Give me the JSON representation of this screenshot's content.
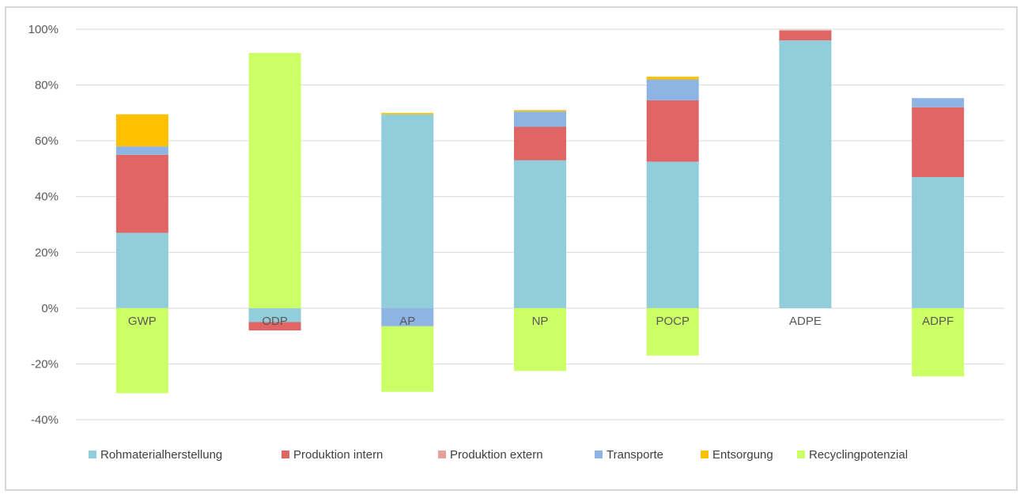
{
  "chart_data": {
    "type": "bar",
    "stacked": true,
    "categories": [
      "GWP",
      "ODP",
      "AP",
      "NP",
      "POCP",
      "ADPE",
      "ADPF"
    ],
    "y_unit": "%",
    "ylim": [
      -40,
      100
    ],
    "yticks": [
      -40,
      -20,
      0,
      20,
      40,
      60,
      80,
      100
    ],
    "y_tick_labels": [
      "-40%",
      "-20%",
      "0%",
      "20%",
      "40%",
      "60%",
      "80%",
      "100%"
    ],
    "grid": true,
    "legend_position": "bottom",
    "series": [
      {
        "name": "Rohmaterialherstellung",
        "color": "#92cddc",
        "values": [
          27,
          -5,
          69.5,
          53,
          52.5,
          96,
          47
        ]
      },
      {
        "name": "Produktion intern",
        "color": "#e06666",
        "values": [
          28,
          -3,
          0,
          12,
          22,
          3.5,
          25
        ]
      },
      {
        "name": "Produktion extern",
        "color": "#e6a19e",
        "values": [
          0,
          0,
          0,
          0,
          0,
          0.3,
          0
        ]
      },
      {
        "name": "Transporte",
        "color": "#8eb4e3",
        "values": [
          3,
          0,
          -6.5,
          5.5,
          7.5,
          0,
          3.3
        ]
      },
      {
        "name": "Entsorgung",
        "color": "#ffc000",
        "values": [
          11.5,
          0,
          0.5,
          0.5,
          1,
          0,
          0
        ]
      },
      {
        "name": "Recyclingpotenzial",
        "color": "#ccff66",
        "values": [
          -30.5,
          91.5,
          -23.5,
          -22.5,
          -17,
          0,
          -24.5
        ]
      }
    ]
  }
}
